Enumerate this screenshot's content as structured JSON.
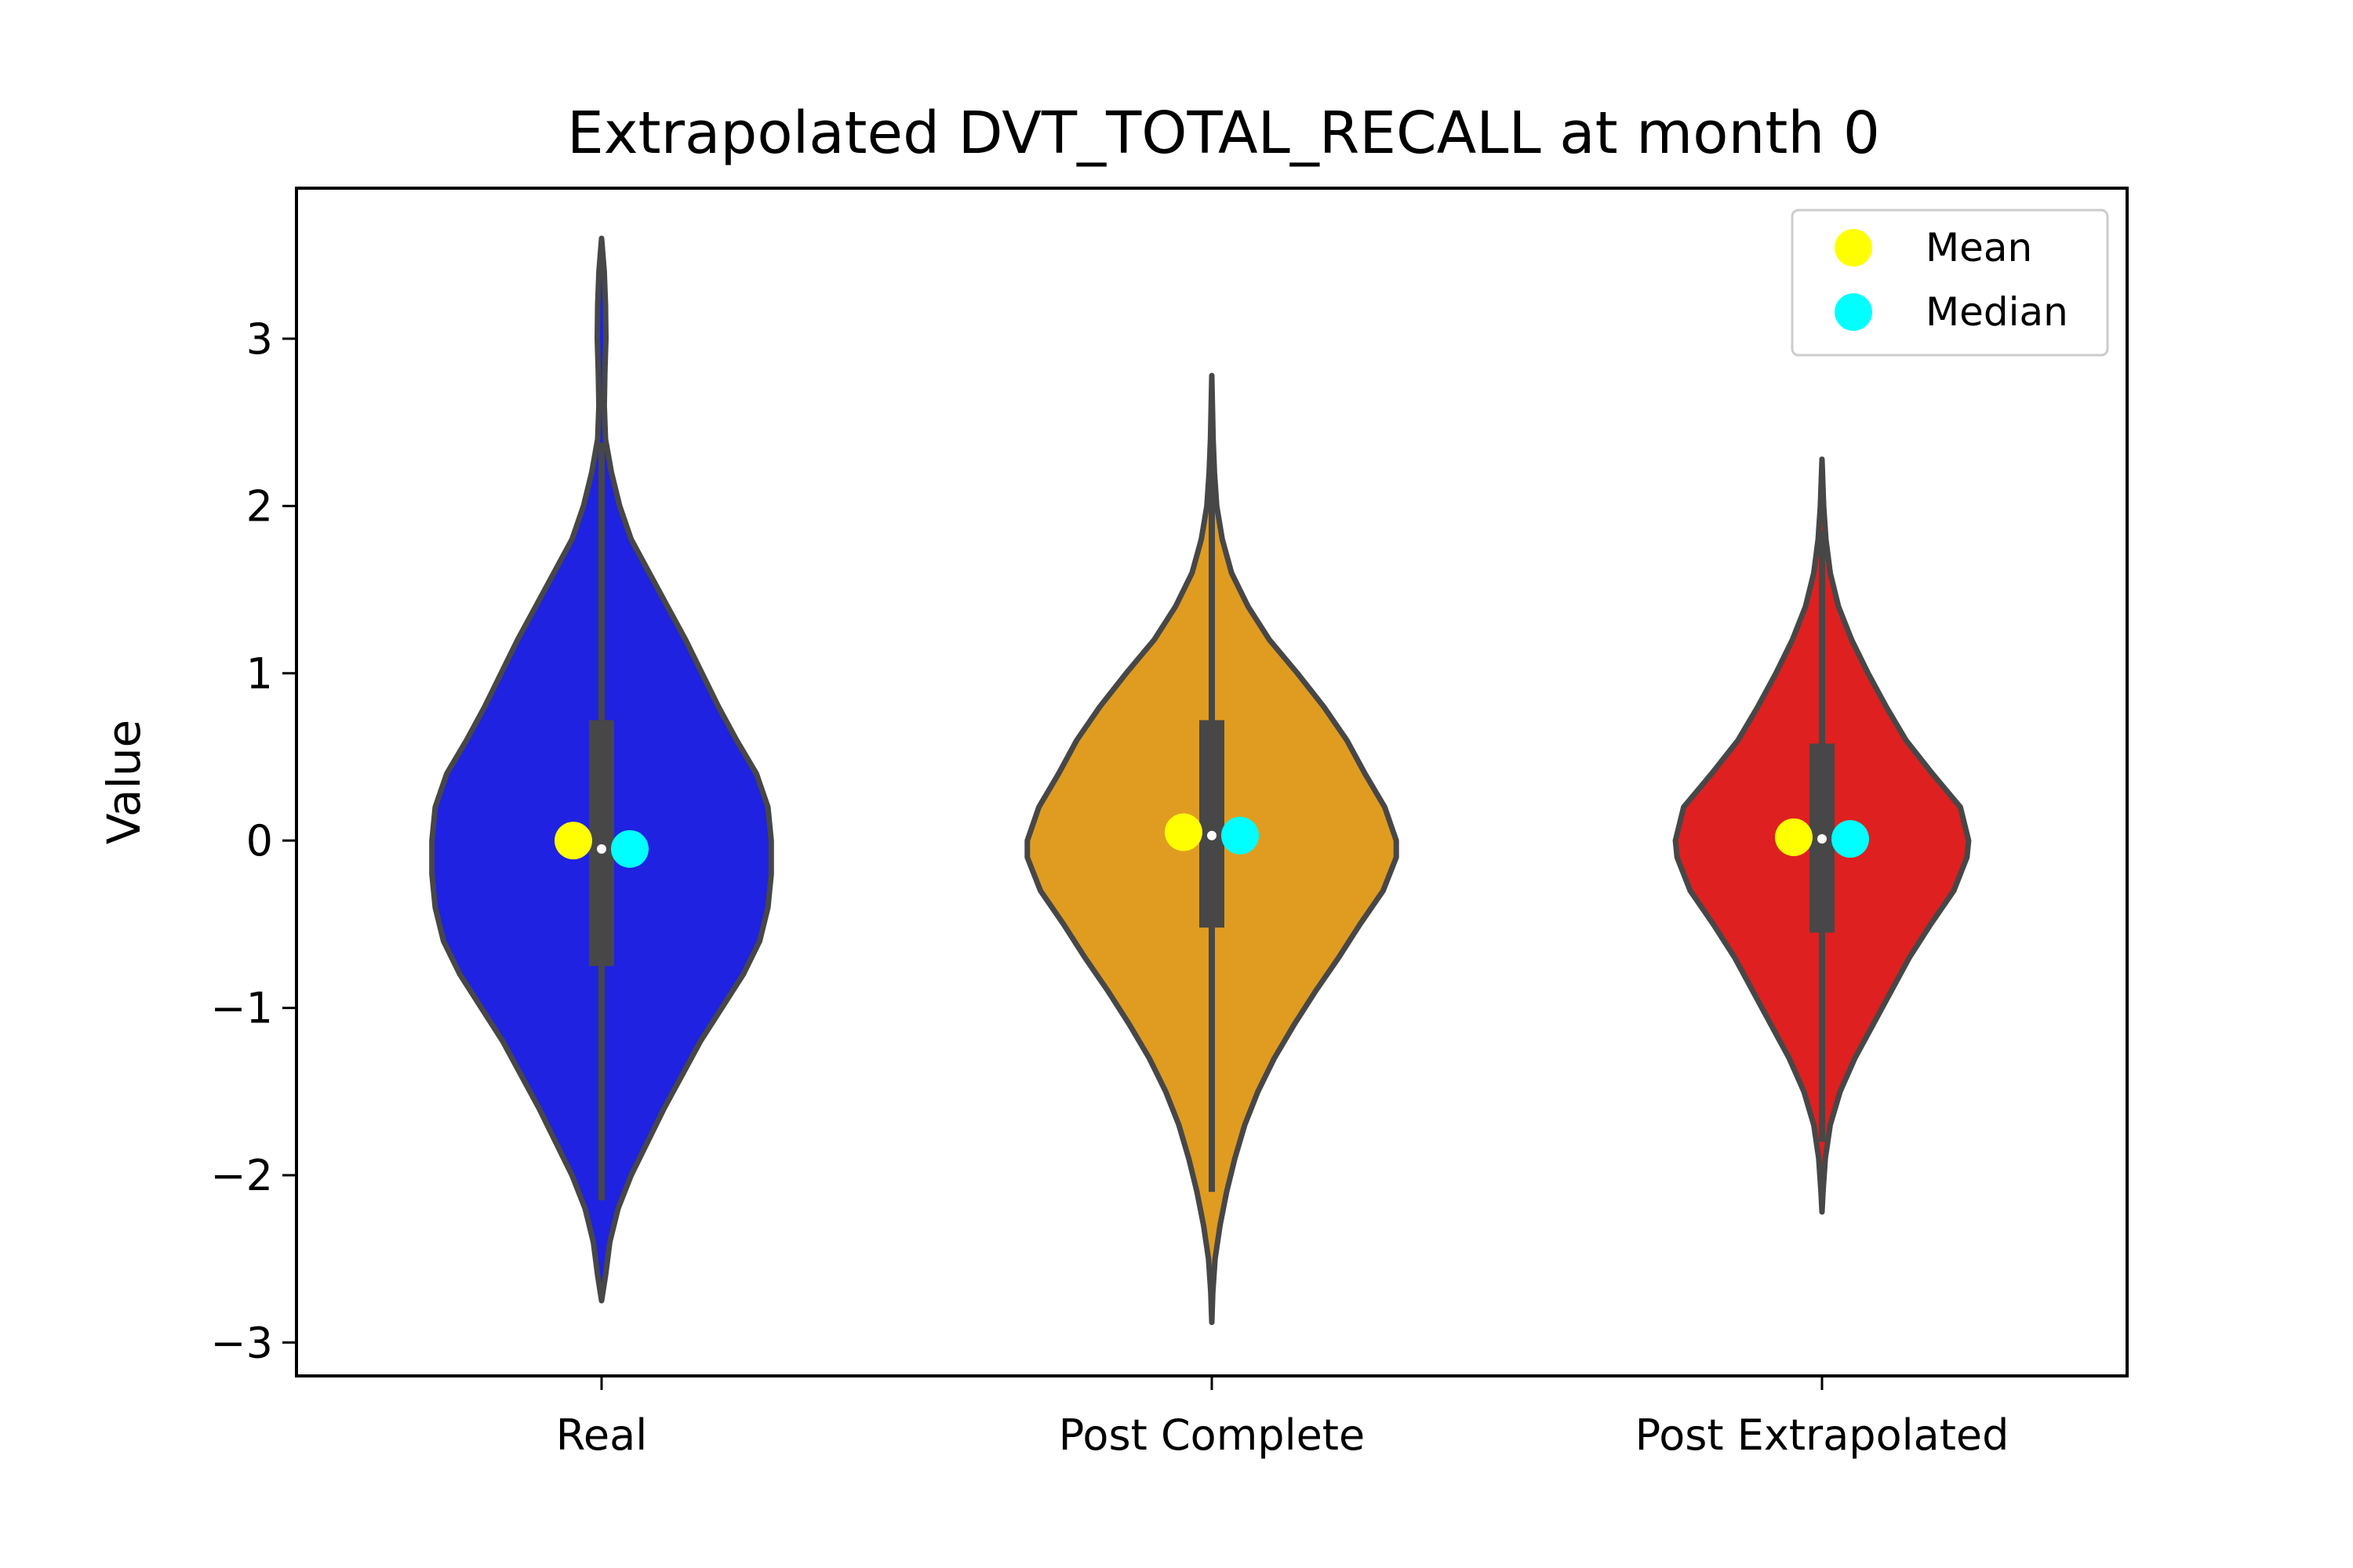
{
  "chart_data": {
    "type": "violin",
    "title": "Extrapolated DVT_TOTAL_RECALL at month 0",
    "xlabel": "",
    "ylabel": "Value",
    "ylim": [
      -3.2,
      3.9
    ],
    "yticks": [
      -3,
      -2,
      -1,
      0,
      1,
      2,
      3
    ],
    "ytick_labels": [
      "−3",
      "−2",
      "−1",
      "0",
      "1",
      "2",
      "3"
    ],
    "grid": false,
    "legend": {
      "placement": "top-right",
      "entries": [
        {
          "label": "Mean",
          "color": "#ffff00"
        },
        {
          "label": "Median",
          "color": "#00ffff"
        }
      ]
    },
    "series": [
      {
        "category": "Real",
        "color": "#1f22e0",
        "mean": 0.0,
        "median": -0.05,
        "q1": -0.75,
        "q3": 0.72,
        "whisker_low": -2.15,
        "whisker_high": 2.38,
        "center_marker": -0.05,
        "profile": [
          [
            -2.75,
            0
          ],
          [
            -2.6,
            0.012
          ],
          [
            -2.4,
            0.025
          ],
          [
            -2.2,
            0.05
          ],
          [
            -2.0,
            0.09
          ],
          [
            -1.8,
            0.14
          ],
          [
            -1.6,
            0.19
          ],
          [
            -1.4,
            0.245
          ],
          [
            -1.2,
            0.3
          ],
          [
            -1.0,
            0.365
          ],
          [
            -0.8,
            0.43
          ],
          [
            -0.6,
            0.48
          ],
          [
            -0.4,
            0.505
          ],
          [
            -0.2,
            0.515
          ],
          [
            0.0,
            0.515
          ],
          [
            0.2,
            0.505
          ],
          [
            0.4,
            0.47
          ],
          [
            0.6,
            0.41
          ],
          [
            0.8,
            0.355
          ],
          [
            1.0,
            0.305
          ],
          [
            1.2,
            0.255
          ],
          [
            1.4,
            0.2
          ],
          [
            1.6,
            0.145
          ],
          [
            1.8,
            0.09
          ],
          [
            2.0,
            0.055
          ],
          [
            2.2,
            0.03
          ],
          [
            2.4,
            0.012
          ],
          [
            2.6,
            0.008
          ],
          [
            2.8,
            0.01
          ],
          [
            3.0,
            0.013
          ],
          [
            3.2,
            0.012
          ],
          [
            3.4,
            0.008
          ],
          [
            3.6,
            0
          ]
        ]
      },
      {
        "category": "Post Complete",
        "color": "#e09c21",
        "mean": 0.05,
        "median": 0.03,
        "q1": -0.52,
        "q3": 0.72,
        "whisker_low": -2.1,
        "whisker_high": 2.3,
        "center_marker": 0.03,
        "profile": [
          [
            -2.88,
            0
          ],
          [
            -2.7,
            0.003
          ],
          [
            -2.5,
            0.01
          ],
          [
            -2.3,
            0.025
          ],
          [
            -2.1,
            0.045
          ],
          [
            -1.9,
            0.07
          ],
          [
            -1.7,
            0.1
          ],
          [
            -1.5,
            0.14
          ],
          [
            -1.3,
            0.19
          ],
          [
            -1.1,
            0.25
          ],
          [
            -0.9,
            0.315
          ],
          [
            -0.7,
            0.385
          ],
          [
            -0.5,
            0.45
          ],
          [
            -0.3,
            0.52
          ],
          [
            -0.1,
            0.56
          ],
          [
            0.0,
            0.56
          ],
          [
            0.2,
            0.525
          ],
          [
            0.4,
            0.465
          ],
          [
            0.6,
            0.41
          ],
          [
            0.8,
            0.34
          ],
          [
            1.0,
            0.26
          ],
          [
            1.2,
            0.175
          ],
          [
            1.4,
            0.11
          ],
          [
            1.6,
            0.06
          ],
          [
            1.8,
            0.032
          ],
          [
            2.0,
            0.015
          ],
          [
            2.2,
            0.008
          ],
          [
            2.4,
            0.004
          ],
          [
            2.6,
            0.002
          ],
          [
            2.78,
            0
          ]
        ]
      },
      {
        "category": "Post Extrapolated",
        "color": "#df2020",
        "mean": 0.02,
        "median": 0.01,
        "q1": -0.55,
        "q3": 0.58,
        "whisker_low": -1.8,
        "whisker_high": 1.85,
        "center_marker": 0.01,
        "profile": [
          [
            -2.22,
            0
          ],
          [
            -2.1,
            0.003
          ],
          [
            -1.9,
            0.01
          ],
          [
            -1.7,
            0.025
          ],
          [
            -1.5,
            0.055
          ],
          [
            -1.3,
            0.1
          ],
          [
            -1.1,
            0.155
          ],
          [
            -0.9,
            0.21
          ],
          [
            -0.7,
            0.265
          ],
          [
            -0.5,
            0.33
          ],
          [
            -0.3,
            0.4
          ],
          [
            -0.1,
            0.44
          ],
          [
            0.0,
            0.445
          ],
          [
            0.2,
            0.42
          ],
          [
            0.4,
            0.335
          ],
          [
            0.6,
            0.255
          ],
          [
            0.8,
            0.195
          ],
          [
            1.0,
            0.14
          ],
          [
            1.2,
            0.09
          ],
          [
            1.4,
            0.05
          ],
          [
            1.6,
            0.025
          ],
          [
            1.8,
            0.012
          ],
          [
            2.0,
            0.005
          ],
          [
            2.28,
            0
          ]
        ]
      }
    ]
  }
}
